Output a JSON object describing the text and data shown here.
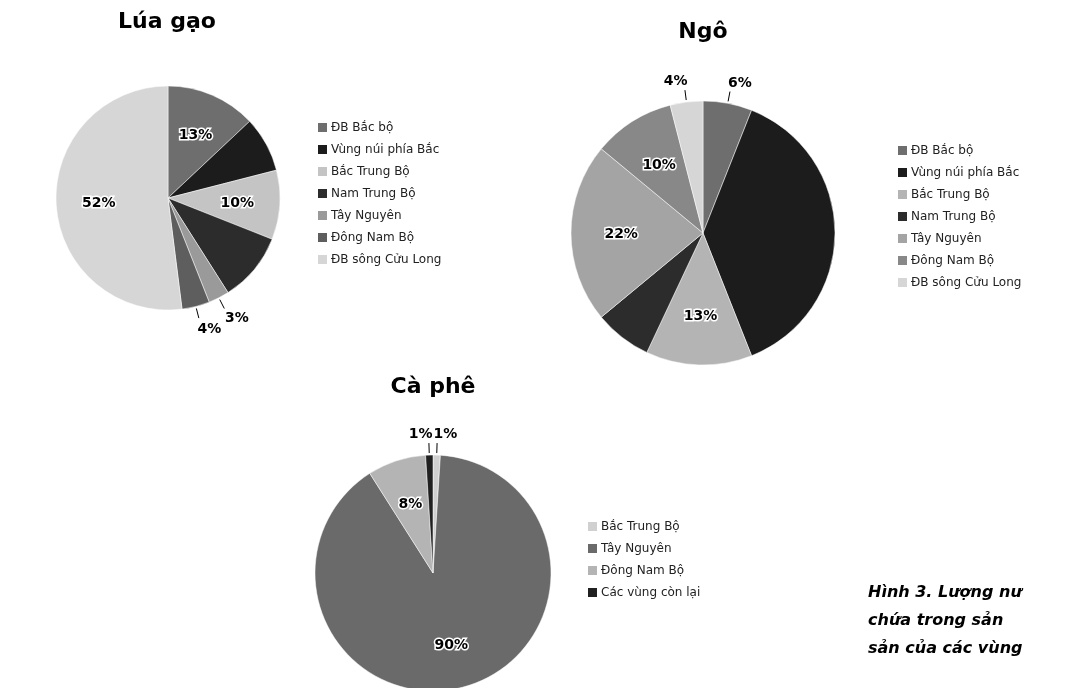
{
  "chart_data": [
    {
      "type": "pie",
      "title": "Lúa gạo",
      "categories": [
        "ĐB Bắc bộ",
        "Vùng núi phía Bắc",
        "Bắc Trung Bộ",
        "Nam Trung Bộ",
        "Tây Nguyên",
        "Đông Nam Bộ",
        "ĐB sông Cửu Long"
      ],
      "values": [
        13,
        8,
        10,
        10,
        3,
        4,
        52
      ],
      "value_labels": [
        "13%",
        null,
        "10%",
        null,
        "3%",
        "4%",
        "52%"
      ],
      "colors": [
        "#6e6e6e",
        "#1c1c1c",
        "#c4c4c4",
        "#2c2c2c",
        "#9a9a9a",
        "#5e5e5e",
        "#d6d6d6"
      ],
      "legend": "right"
    },
    {
      "type": "pie",
      "title": "Ngô",
      "categories": [
        "ĐB Bắc bộ",
        "Vùng núi phía Bắc",
        "Bắc Trung Bộ",
        "Nam Trung Bộ",
        "Tây Nguyên",
        "Đông Nam Bộ",
        "ĐB sông Cửu Long"
      ],
      "values": [
        6,
        38,
        13,
        7,
        22,
        10,
        4
      ],
      "value_labels": [
        "6%",
        null,
        "13%",
        null,
        "22%",
        "10%",
        "4%"
      ],
      "colors": [
        "#6e6e6e",
        "#1c1c1c",
        "#b4b4b4",
        "#2c2c2c",
        "#a4a4a4",
        "#888888",
        "#d6d6d6"
      ],
      "legend": "right"
    },
    {
      "type": "pie",
      "title": "Cà phê",
      "categories": [
        "Bắc Trung Bộ",
        "Tây Nguyên",
        "Đông Nam Bộ",
        "Các vùng còn lại"
      ],
      "values": [
        1,
        90,
        8,
        1
      ],
      "value_labels": [
        "1%",
        "90%",
        "8%",
        "1%"
      ],
      "colors": [
        "#d0d0d0",
        "#6a6a6a",
        "#b4b4b4",
        "#202020"
      ],
      "legend": "right",
      "annotations": [
        "Hình 3. Lượng nư",
        "chứa trong sản",
        "sản của các vùng"
      ]
    }
  ]
}
